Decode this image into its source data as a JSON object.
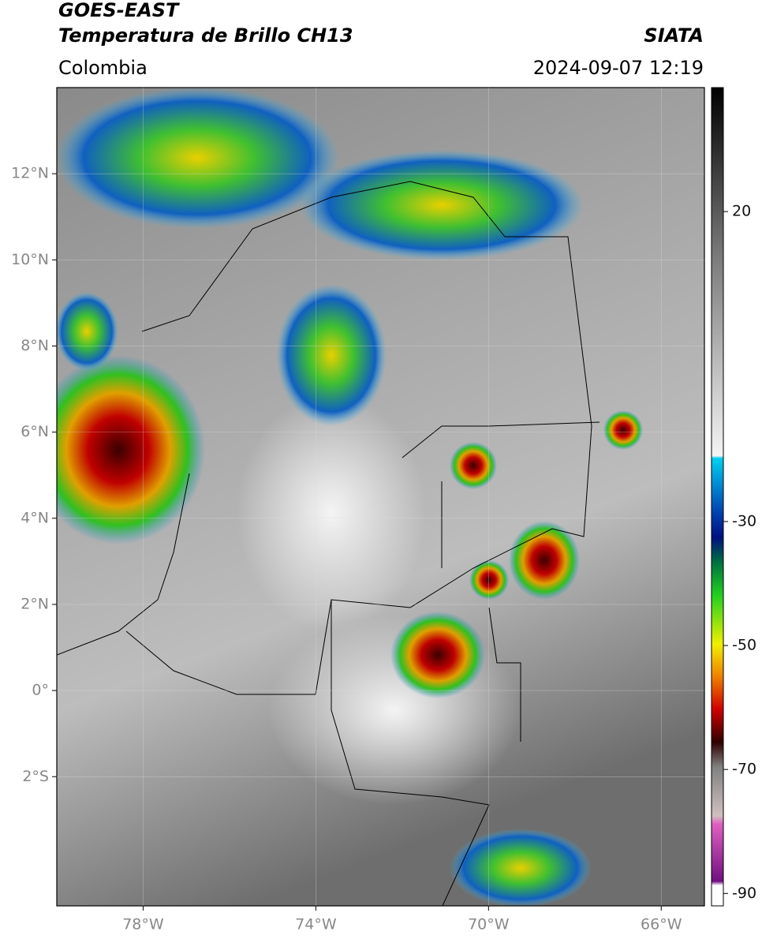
{
  "header": {
    "title": "GOES-EAST",
    "subtitle": "Temperatura de Brillo CH13",
    "source": "SIATA",
    "region": "Colombia",
    "datetime": "2024-09-07 12:19"
  },
  "map": {
    "xlim": [
      -80,
      -65
    ],
    "ylim": [
      -5,
      14
    ],
    "xticks": [
      {
        "value": -78,
        "label": "78°W"
      },
      {
        "value": -74,
        "label": "74°W"
      },
      {
        "value": -70,
        "label": "70°W"
      },
      {
        "value": -66,
        "label": "66°W"
      }
    ],
    "yticks": [
      {
        "value": 12,
        "label": "12°N"
      },
      {
        "value": 10,
        "label": "10°N"
      },
      {
        "value": 8,
        "label": "8°N"
      },
      {
        "value": 6,
        "label": "6°N"
      },
      {
        "value": 4,
        "label": "4°N"
      },
      {
        "value": 2,
        "label": "2°N"
      },
      {
        "value": 0,
        "label": "0°"
      },
      {
        "value": -2,
        "label": "2°S"
      }
    ],
    "grid": true
  },
  "colorbar": {
    "lim": [
      -92,
      40
    ],
    "ticks": [
      20,
      -30,
      -50,
      -70,
      -90
    ]
  }
}
